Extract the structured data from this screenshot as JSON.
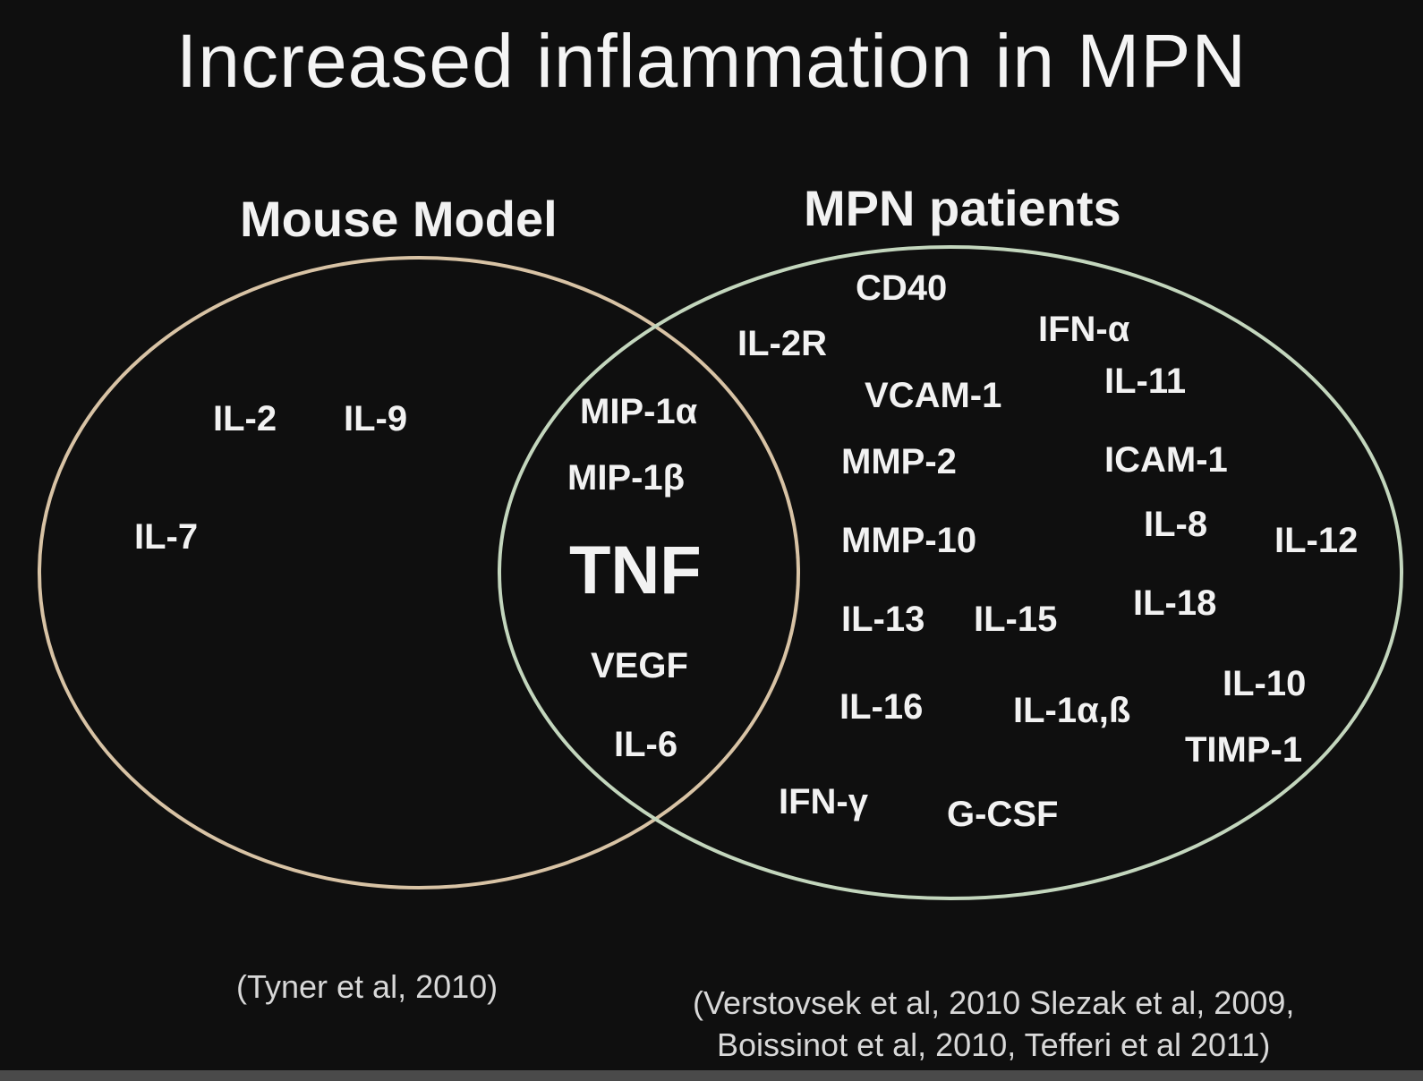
{
  "title": "Increased inflammation in MPN",
  "sets": {
    "mouse_model": {
      "label": "Mouse Model",
      "color": "#d8c3a5",
      "only_terms": [
        "IL-2",
        "IL-9",
        "IL-7"
      ]
    },
    "mpn_patients": {
      "label": "MPN patients",
      "color": "#c3d6bd",
      "only_terms": [
        "CD40",
        "IL-2R",
        "IFN-α",
        "VCAM-1",
        "IL-11",
        "MMP-2",
        "ICAM-1",
        "IL-8",
        "IL-12",
        "MMP-10",
        "IL-13",
        "IL-15",
        "IL-18",
        "IL-10",
        "IL-16",
        "IL-1α,ß",
        "TIMP-1",
        "IFN-γ",
        "G-CSF"
      ]
    },
    "overlap_terms": [
      "MIP-1α",
      "MIP-1β",
      "TNF",
      "VEGF",
      "IL-6"
    ]
  },
  "citations": {
    "mouse": "(Tyner et al, 2010)",
    "patients_line1": "(Verstovsek et al, 2010 Slezak et al, 2009,",
    "patients_line2": "Boissinot et al, 2010, Tefferi et al 2011)"
  },
  "colors": {
    "background": "#0f0f0f",
    "text": "#f2f2f2",
    "mouse_circle": "#d8c3a5",
    "patients_circle": "#c3d6bd"
  }
}
